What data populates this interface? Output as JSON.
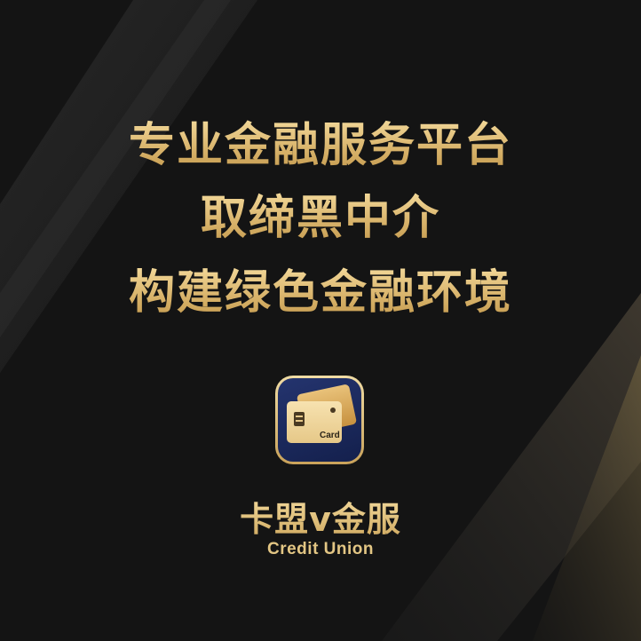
{
  "headline": {
    "line1": "专业金融服务平台",
    "line2": "取缔黑中介",
    "line3": "构建绿色金融环境"
  },
  "app_icon": {
    "icon": "credit-card-icon",
    "card_label": "Card"
  },
  "brand": {
    "name": "卡盟v金服",
    "subtitle": "Credit Union"
  },
  "colors": {
    "background": "#141414",
    "gold": "#dcb872",
    "icon_navy": "#1c2a5e"
  }
}
